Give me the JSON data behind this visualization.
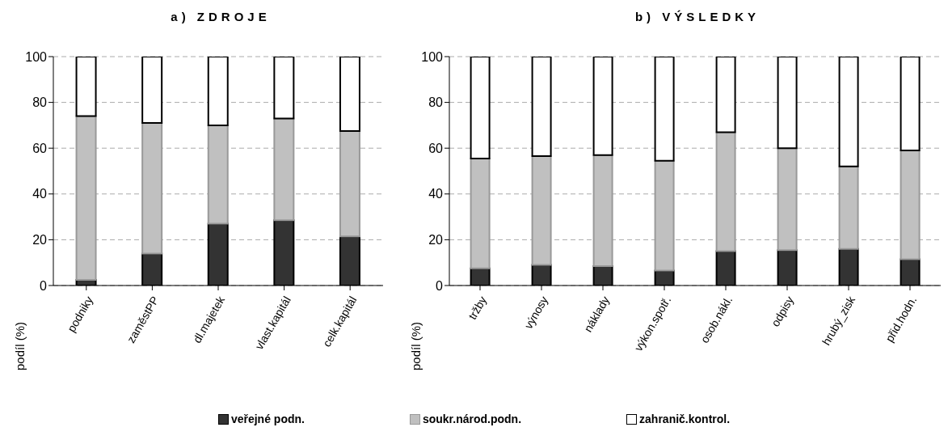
{
  "chart_data": [
    {
      "type": "bar",
      "title": "a) ZDROJE",
      "ylabel": "podíl (%)",
      "categories": [
        "podniky",
        "zaměstPP",
        "dl.majetek",
        "vlast.kapitál",
        "celk.kapitál"
      ],
      "stacked": true,
      "ylim": [
        0,
        100
      ],
      "yticks": [
        0,
        20,
        40,
        60,
        80,
        100
      ],
      "grid": "y",
      "legend": "bottom",
      "series": [
        {
          "name": "veřejné podn.",
          "color": "#333333",
          "values": [
            2.5,
            14,
            27,
            28.5,
            21.5
          ]
        },
        {
          "name": "soukr.národ.podn.",
          "color": "#c0c0c0",
          "values": [
            71.5,
            57,
            43,
            44.5,
            46
          ]
        },
        {
          "name": "zahranič.kontrol.",
          "color": "#ffffff",
          "values": [
            26,
            29,
            30,
            27,
            32.5
          ]
        }
      ]
    },
    {
      "type": "bar",
      "title": "b) VÝSLEDKY",
      "ylabel": "podíl (%)",
      "categories": [
        "tržby",
        "výnosy",
        "náklady",
        "výkon.spotř.",
        "osob.nákl.",
        "odpisy",
        "hrubý_zisk",
        "přid.hodn."
      ],
      "stacked": true,
      "ylim": [
        0,
        100
      ],
      "yticks": [
        0,
        20,
        40,
        60,
        80,
        100
      ],
      "grid": "y",
      "series": [
        {
          "color": "#333333",
          "values": [
            7.5,
            9,
            8.5,
            6.5,
            15,
            15.5,
            16,
            11.5
          ]
        },
        {
          "color": "#c0c0c0",
          "values": [
            48,
            47.5,
            48.5,
            48,
            52,
            44.5,
            36,
            47.5
          ]
        },
        {
          "color": "#ffffff",
          "values": [
            44.5,
            43.5,
            43,
            45.5,
            33,
            40,
            48,
            41
          ]
        }
      ]
    }
  ]
}
